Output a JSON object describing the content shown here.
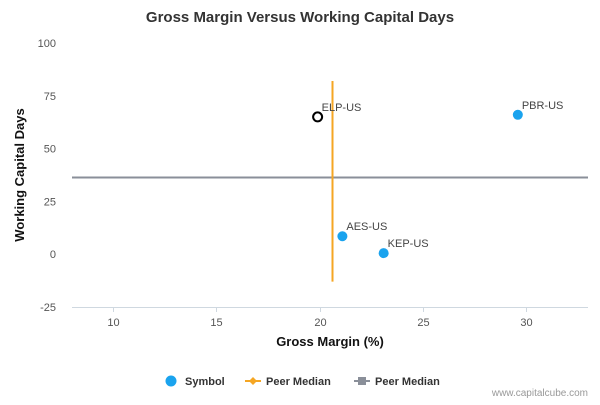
{
  "chart_data": {
    "type": "scatter",
    "title": "Gross Margin Versus Working Capital Days",
    "xlabel": "Gross Margin (%)",
    "ylabel": "Working Capital Days",
    "xlim": [
      8,
      33
    ],
    "ylim": [
      -25,
      100
    ],
    "xticks": [
      10,
      15,
      20,
      25,
      30
    ],
    "yticks": [
      -25,
      0,
      25,
      50,
      75,
      100
    ],
    "grid": false,
    "legend_position": "bottom",
    "points": [
      {
        "label": "ELP-US",
        "x": 19.9,
        "y": 65,
        "highlight": true
      },
      {
        "label": "PBR-US",
        "x": 29.6,
        "y": 66,
        "highlight": false
      },
      {
        "label": "AES-US",
        "x": 21.1,
        "y": 8.5,
        "highlight": false
      },
      {
        "label": "KEP-US",
        "x": 23.1,
        "y": 0.5,
        "highlight": false
      }
    ],
    "peer_median_x": 20.6,
    "peer_median_x_range": [
      -13,
      82
    ],
    "peer_median_y": 36.5,
    "legend": [
      {
        "name": "Symbol",
        "kind": "dot"
      },
      {
        "name": "Peer Median",
        "kind": "vline"
      },
      {
        "name": "Peer Median",
        "kind": "hline"
      }
    ],
    "colors": {
      "symbol": "#1aa3ee",
      "highlight_stroke": "#000000",
      "peer_median_x": "#f5a623",
      "peer_median_y": "#8a8f99"
    }
  },
  "credit": "www.capitalcube.com"
}
